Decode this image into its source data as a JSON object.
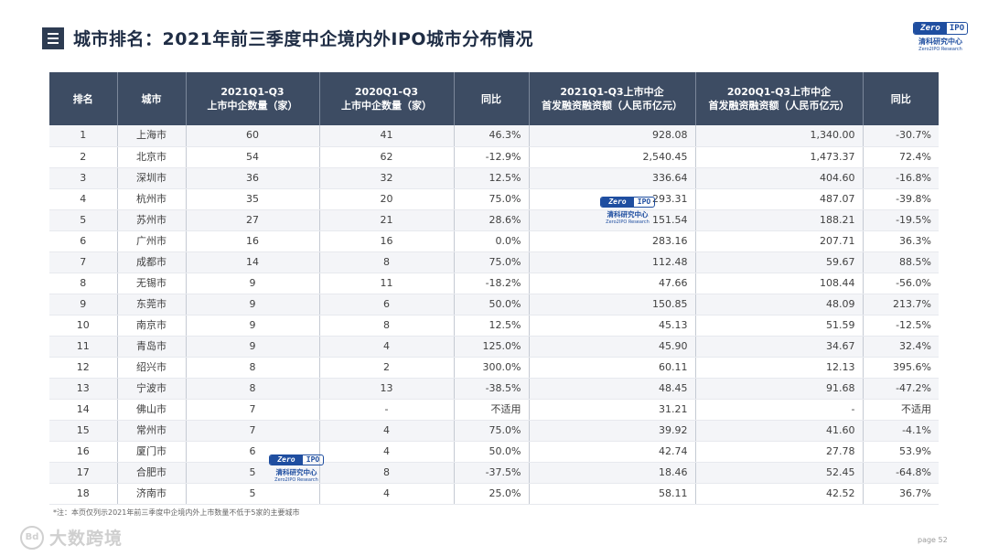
{
  "title": "城市排名：2021年前三季度中企境内外IPO城市分布情况",
  "logo": {
    "badge_left": "Zero",
    "badge_right": "IPO",
    "cn": "清科研究中心",
    "en": "Zero2IPO Research"
  },
  "table": {
    "headers": [
      {
        "line1": "排名",
        "line2": ""
      },
      {
        "line1": "城市",
        "line2": ""
      },
      {
        "line1": "2021Q1-Q3",
        "line2": "上市中企数量（家）"
      },
      {
        "line1": "2020Q1-Q3",
        "line2": "上市中企数量（家）"
      },
      {
        "line1": "同比",
        "line2": ""
      },
      {
        "line1": "2021Q1-Q3上市中企",
        "line2": "首发融资融资额（人民币亿元）"
      },
      {
        "line1": "2020Q1-Q3上市中企",
        "line2": "首发融资融资额（人民币亿元）"
      },
      {
        "line1": "同比",
        "line2": ""
      }
    ],
    "rows": [
      [
        "1",
        "上海市",
        "60",
        "41",
        "46.3%",
        "928.08",
        "1,340.00",
        "-30.7%"
      ],
      [
        "2",
        "北京市",
        "54",
        "62",
        "-12.9%",
        "2,540.45",
        "1,473.37",
        "72.4%"
      ],
      [
        "3",
        "深圳市",
        "36",
        "32",
        "12.5%",
        "336.64",
        "404.60",
        "-16.8%"
      ],
      [
        "4",
        "杭州市",
        "35",
        "20",
        "75.0%",
        "293.31",
        "487.07",
        "-39.8%"
      ],
      [
        "5",
        "苏州市",
        "27",
        "21",
        "28.6%",
        "151.54",
        "188.21",
        "-19.5%"
      ],
      [
        "6",
        "广州市",
        "16",
        "16",
        "0.0%",
        "283.16",
        "207.71",
        "36.3%"
      ],
      [
        "7",
        "成都市",
        "14",
        "8",
        "75.0%",
        "112.48",
        "59.67",
        "88.5%"
      ],
      [
        "8",
        "无锡市",
        "9",
        "11",
        "-18.2%",
        "47.66",
        "108.44",
        "-56.0%"
      ],
      [
        "9",
        "东莞市",
        "9",
        "6",
        "50.0%",
        "150.85",
        "48.09",
        "213.7%"
      ],
      [
        "10",
        "南京市",
        "9",
        "8",
        "12.5%",
        "45.13",
        "51.59",
        "-12.5%"
      ],
      [
        "11",
        "青岛市",
        "9",
        "4",
        "125.0%",
        "45.90",
        "34.67",
        "32.4%"
      ],
      [
        "12",
        "绍兴市",
        "8",
        "2",
        "300.0%",
        "60.11",
        "12.13",
        "395.6%"
      ],
      [
        "13",
        "宁波市",
        "8",
        "13",
        "-38.5%",
        "48.45",
        "91.68",
        "-47.2%"
      ],
      [
        "14",
        "佛山市",
        "7",
        "-",
        "不适用",
        "31.21",
        "-",
        "不适用"
      ],
      [
        "15",
        "常州市",
        "7",
        "4",
        "75.0%",
        "39.92",
        "41.60",
        "-4.1%"
      ],
      [
        "16",
        "厦门市",
        "6",
        "4",
        "50.0%",
        "42.74",
        "27.78",
        "53.9%"
      ],
      [
        "17",
        "合肥市",
        "5",
        "8",
        "-37.5%",
        "18.46",
        "52.45",
        "-64.8%"
      ],
      [
        "18",
        "济南市",
        "5",
        "4",
        "25.0%",
        "58.11",
        "42.52",
        "36.7%"
      ]
    ]
  },
  "footnote": "*注：本页仅列示2021年前三季度中企境内外上市数量不低于5家的主要城市",
  "brand": {
    "mark": "Bd",
    "name": "大数跨境"
  },
  "page": "page  52"
}
